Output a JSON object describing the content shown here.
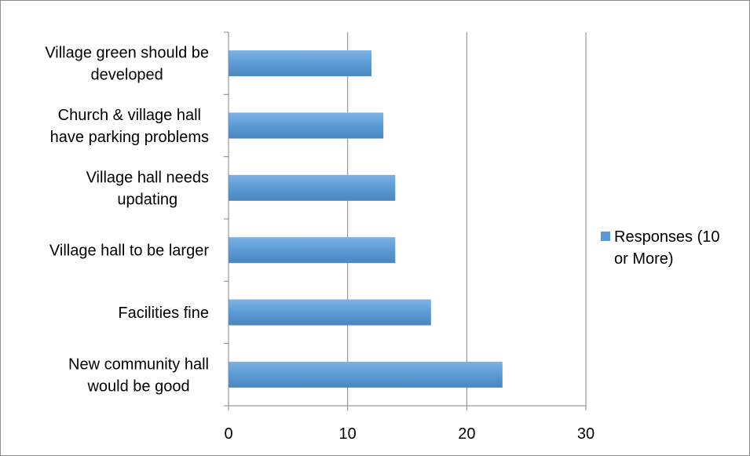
{
  "chart_data": {
    "type": "bar",
    "orientation": "horizontal",
    "categories": [
      [
        "Village green should be",
        "developed"
      ],
      [
        "Church & village hall",
        "have parking problems"
      ],
      [
        "Village hall needs",
        "updating"
      ],
      [
        "Village hall to be larger"
      ],
      [
        "Facilities fine"
      ],
      [
        "New community hall",
        "would be good"
      ]
    ],
    "series": [
      {
        "name": [
          "Responses (10",
          "or More)"
        ],
        "values": [
          12,
          13,
          14,
          14,
          17,
          23
        ]
      }
    ],
    "xlim": [
      0,
      30
    ],
    "x_ticks": [
      0,
      10,
      20,
      30
    ],
    "grid": true,
    "legend_position": "right",
    "colors": {
      "bar": "#5b9bd5",
      "bar_light": "#7eb2e2",
      "grid": "#868686",
      "axis": "#868686",
      "border": "#8c8c8c"
    }
  }
}
